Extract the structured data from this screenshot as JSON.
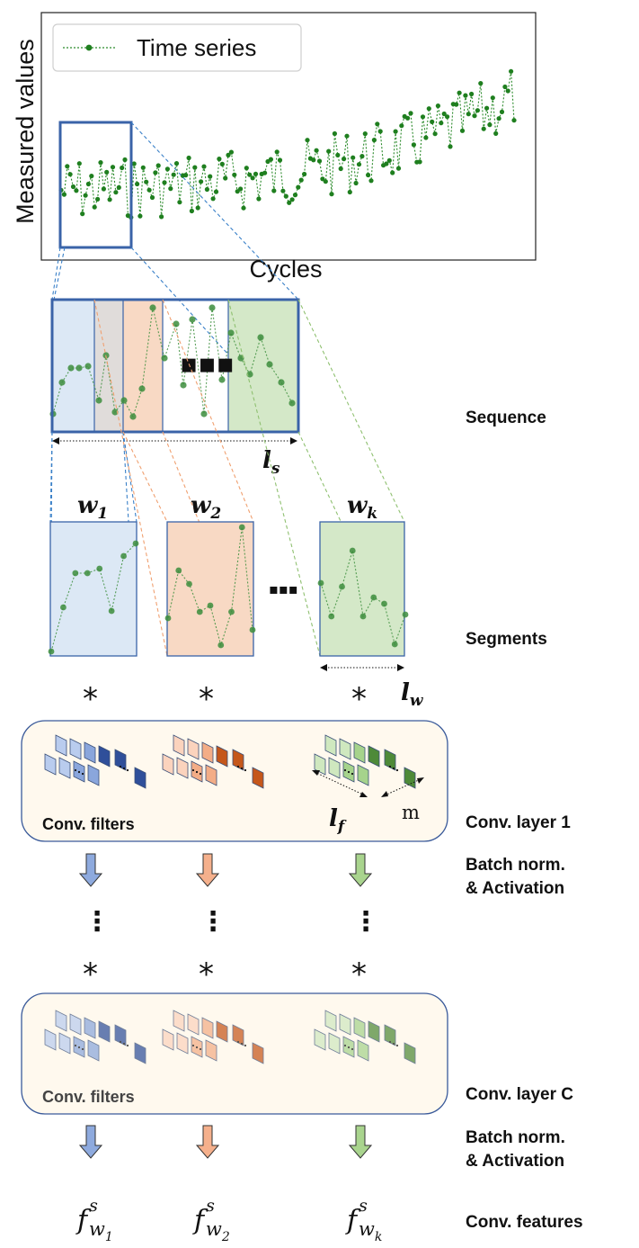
{
  "plot": {
    "legend": "Time series",
    "ylabel": "Measured values",
    "xlabel": "Cycles"
  },
  "colors": {
    "series": "#1f7f1f",
    "window_blue": "#dce8f5",
    "window_orange": "#f8d9c4",
    "window_green": "#d4e8c8",
    "conv_panel": "#fff9ee",
    "panel_border": "#3a5a9a"
  },
  "labels": {
    "sequence": "Sequence",
    "segments": "Segments",
    "conv_layer_1": "Conv. layer 1",
    "batch_norm_1a": "Batch norm.",
    "batch_norm_1b": "& Activation",
    "conv_layer_c": "Conv. layer C",
    "batch_norm_2a": "Batch norm.",
    "batch_norm_2b": "& Activation",
    "conv_features": "Conv. features",
    "conv_filters_1": "Conv. filters",
    "conv_filters_2": "Conv. filters"
  },
  "symbols": {
    "ls_main": "l",
    "ls_sub": "s",
    "lw_main": "l",
    "lw_sub": "w",
    "lf_main": "l",
    "lf_sub": "f",
    "m": "m",
    "w1_main": "w",
    "w1_sub": "1",
    "w2_main": "w",
    "w2_sub": "2",
    "wk_main": "w",
    "wk_sub": "k",
    "conv_op": "*",
    "ellipsis": "▪▪▪",
    "vdots": "⋮",
    "feat_main": "f",
    "feat_sup": "s",
    "feat_w": "w",
    "feat_sub1": "1",
    "feat_sub2": "2",
    "feat_subk": "k"
  }
}
